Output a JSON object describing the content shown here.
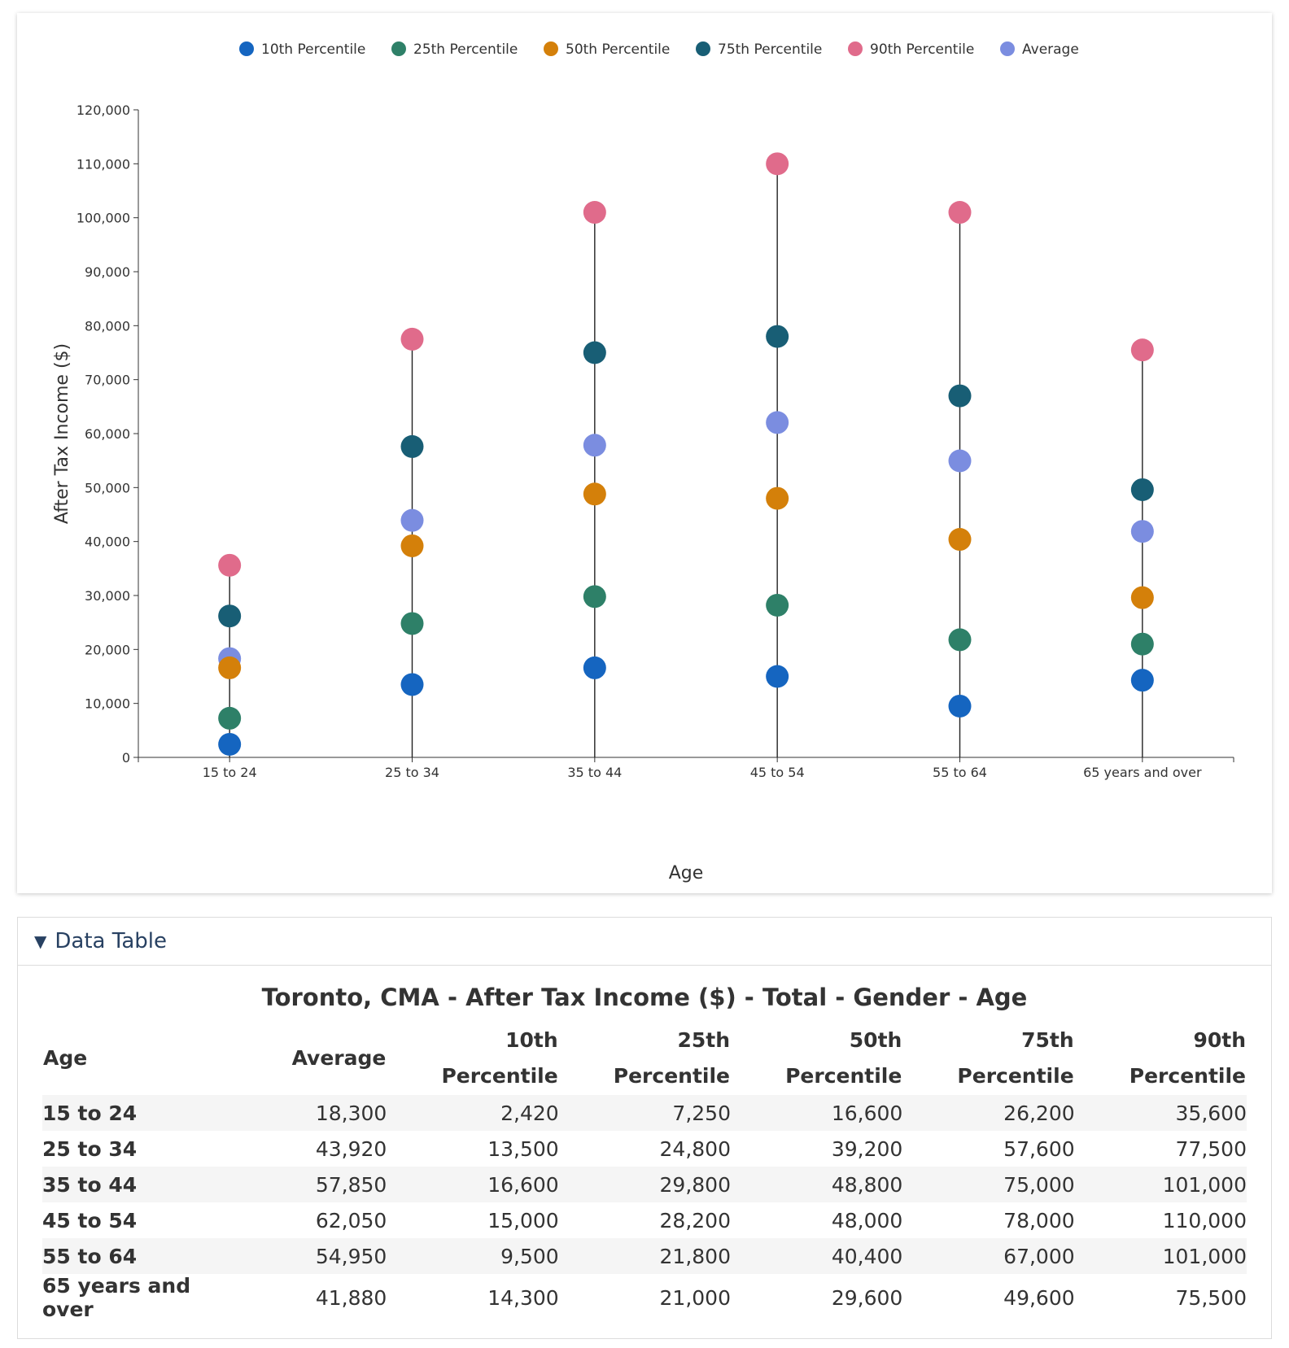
{
  "chart_data": {
    "type": "scatter",
    "xlabel": "Age",
    "ylabel": "After Tax Income ($)",
    "ylim": [
      0,
      120000
    ],
    "y_ticks": [
      0,
      10000,
      20000,
      30000,
      40000,
      50000,
      60000,
      70000,
      80000,
      90000,
      100000,
      110000,
      120000
    ],
    "y_tick_labels": [
      "0",
      "10,000",
      "20,000",
      "30,000",
      "40,000",
      "50,000",
      "60,000",
      "70,000",
      "80,000",
      "90,000",
      "100,000",
      "110,000",
      "120,000"
    ],
    "categories": [
      "15 to 24",
      "25 to 34",
      "35 to 44",
      "45 to 54",
      "55 to 64",
      "65 years and over"
    ],
    "legend_position": "top",
    "grid": false,
    "series": [
      {
        "name": "10th Percentile",
        "color": "#1565c0",
        "values": [
          2420,
          13500,
          16600,
          15000,
          9500,
          14300
        ]
      },
      {
        "name": "25th Percentile",
        "color": "#2e8068",
        "values": [
          7250,
          24800,
          29800,
          28200,
          21800,
          21000
        ]
      },
      {
        "name": "50th Percentile",
        "color": "#d4800a",
        "values": [
          16600,
          39200,
          48800,
          48000,
          40400,
          29600
        ]
      },
      {
        "name": "75th Percentile",
        "color": "#185e75",
        "values": [
          26200,
          57600,
          75000,
          78000,
          67000,
          49600
        ]
      },
      {
        "name": "90th Percentile",
        "color": "#e06b8b",
        "values": [
          35600,
          77500,
          101000,
          110000,
          101000,
          75500
        ]
      },
      {
        "name": "Average",
        "color": "#7b8de0",
        "values": [
          18300,
          43920,
          57850,
          62050,
          54950,
          41880
        ]
      }
    ]
  },
  "data_table": {
    "toggle_label": "Data Table",
    "title": "Toronto, CMA - After Tax Income ($) - Total - Gender - Age",
    "headers": {
      "age": "Age",
      "average": "Average",
      "p10_a": "10th",
      "p10_b": "Percentile",
      "p25_a": "25th",
      "p25_b": "Percentile",
      "p50_a": "50th",
      "p50_b": "Percentile",
      "p75_a": "75th",
      "p75_b": "Percentile",
      "p90_a": "90th",
      "p90_b": "Percentile"
    },
    "rows": [
      {
        "age": "15 to 24",
        "average": "18,300",
        "p10": "2,420",
        "p25": "7,250",
        "p50": "16,600",
        "p75": "26,200",
        "p90": "35,600"
      },
      {
        "age": "25 to 34",
        "average": "43,920",
        "p10": "13,500",
        "p25": "24,800",
        "p50": "39,200",
        "p75": "57,600",
        "p90": "77,500"
      },
      {
        "age": "35 to 44",
        "average": "57,850",
        "p10": "16,600",
        "p25": "29,800",
        "p50": "48,800",
        "p75": "75,000",
        "p90": "101,000"
      },
      {
        "age": "45 to 54",
        "average": "62,050",
        "p10": "15,000",
        "p25": "28,200",
        "p50": "48,000",
        "p75": "78,000",
        "p90": "110,000"
      },
      {
        "age": "55 to 64",
        "average": "54,950",
        "p10": "9,500",
        "p25": "21,800",
        "p50": "40,400",
        "p75": "67,000",
        "p90": "101,000"
      },
      {
        "age": "65 years and over",
        "average": "41,880",
        "p10": "14,300",
        "p25": "21,000",
        "p50": "29,600",
        "p75": "49,600",
        "p90": "75,500"
      }
    ]
  }
}
